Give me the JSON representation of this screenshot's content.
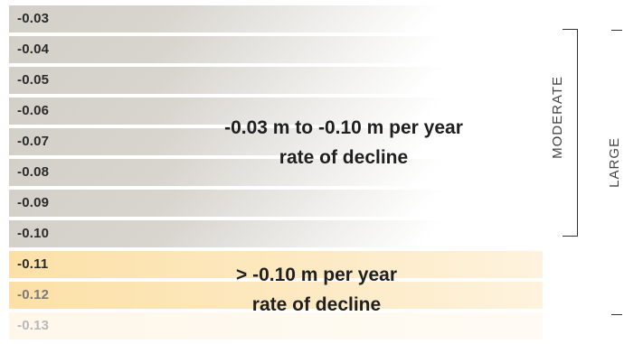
{
  "bands": [
    {
      "label": "-0.03",
      "tone": "gray"
    },
    {
      "label": "-0.04",
      "tone": "gray"
    },
    {
      "label": "-0.05",
      "tone": "gray"
    },
    {
      "label": "-0.06",
      "tone": "gray"
    },
    {
      "label": "-0.07",
      "tone": "gray"
    },
    {
      "label": "-0.08",
      "tone": "gray"
    },
    {
      "label": "-0.09",
      "tone": "gray"
    },
    {
      "label": "-0.10",
      "tone": "gray"
    },
    {
      "label": "-0.11",
      "tone": "yellow"
    },
    {
      "label": "-0.12",
      "tone": "yellow-fade"
    },
    {
      "label": "-0.13",
      "tone": "faint"
    }
  ],
  "moderate_zone": {
    "line1": "-0.03 m to -0.10 m per year",
    "line2": "rate of decline",
    "bracket_label": "MODERATE"
  },
  "large_zone": {
    "line1": "> -0.10 m per year",
    "line2": "rate of decline",
    "bracket_label": "LARGE"
  },
  "colors": {
    "gray_band": "#d3d0c9",
    "yellow_band": "#fce0a7",
    "text_dark": "#1f1f1f",
    "bracket_line": "#333333"
  }
}
